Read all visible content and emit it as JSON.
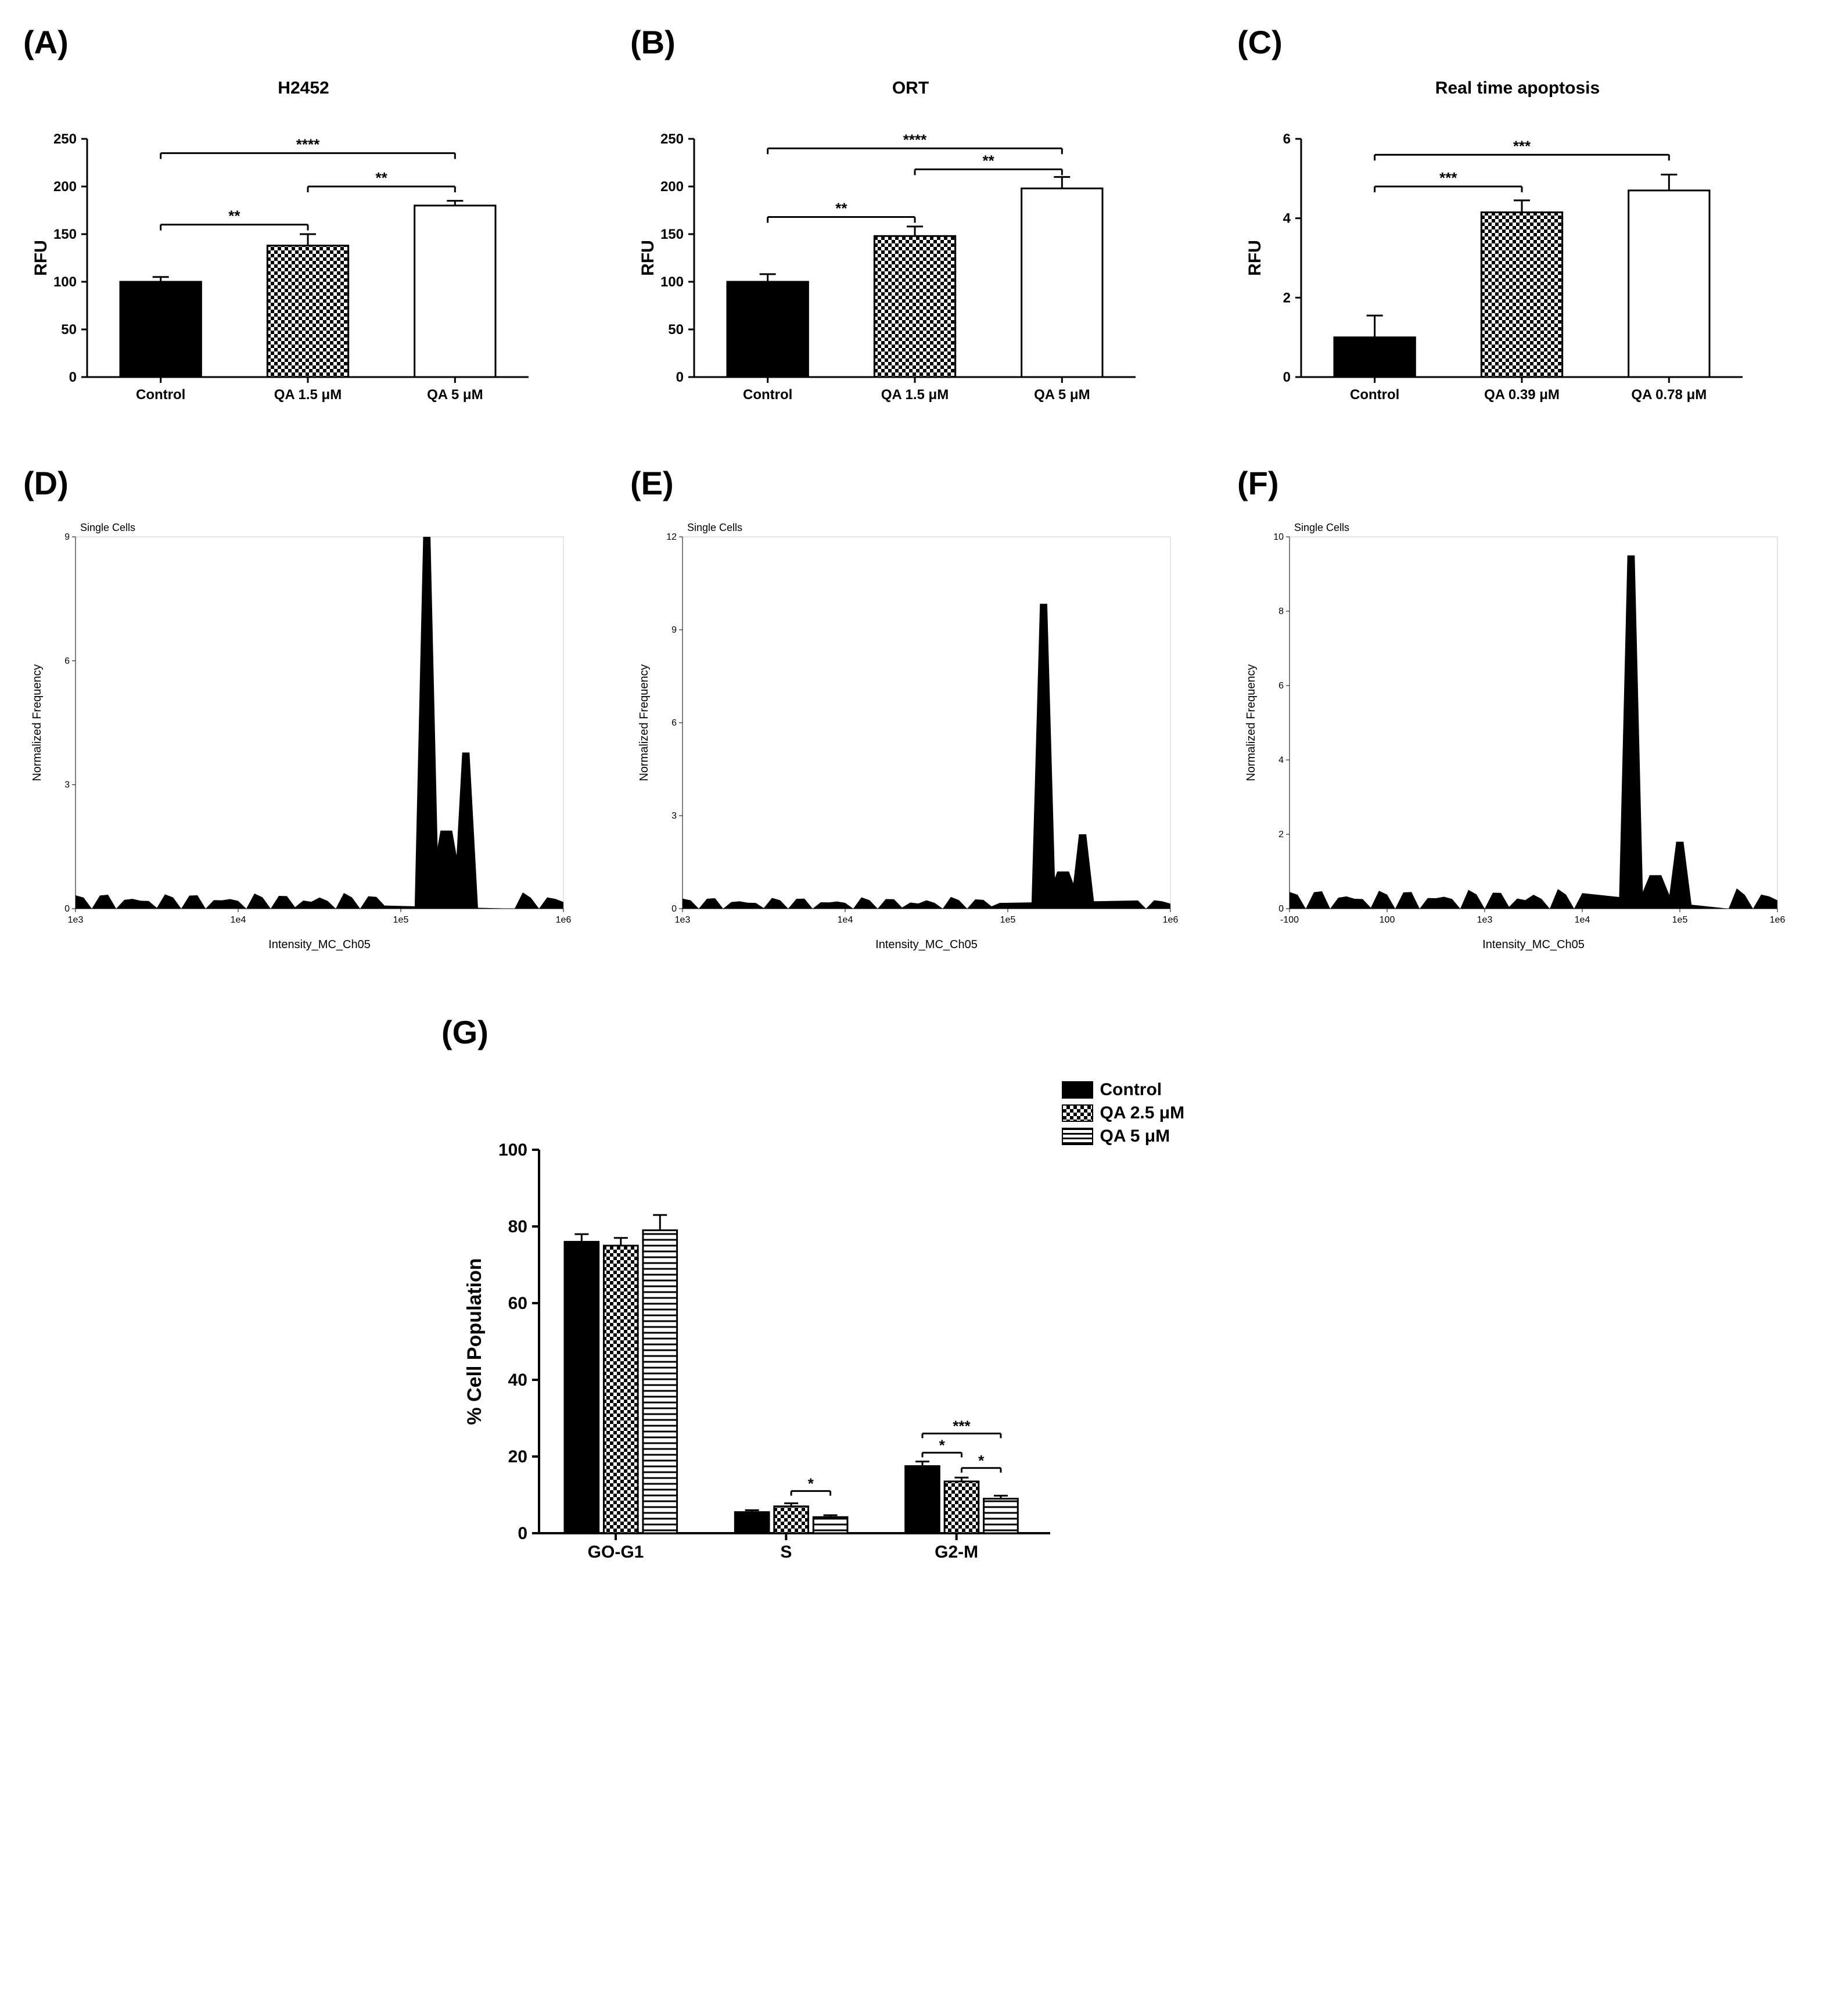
{
  "panelA": {
    "label": "(A)",
    "title": "H2452",
    "ylabel": "RFU",
    "ylim": [
      0,
      250
    ],
    "ytick_step": 50,
    "categories": [
      "Control",
      "QA 1.5 μM",
      "QA 5 μM"
    ],
    "values": [
      100,
      138,
      180
    ],
    "errors": [
      5,
      12,
      5
    ],
    "bar_fills": [
      "solid",
      "checker",
      "white"
    ],
    "sig": [
      {
        "from": 0,
        "to": 1,
        "text": "**",
        "y": 160
      },
      {
        "from": 1,
        "to": 2,
        "text": "**",
        "y": 200
      },
      {
        "from": 0,
        "to": 2,
        "text": "****",
        "y": 235
      }
    ],
    "label_fontsize": 24,
    "tick_fontsize": 22,
    "colors": {
      "stroke": "#000000",
      "bg": "#ffffff"
    }
  },
  "panelB": {
    "label": "(B)",
    "title": "ORT",
    "ylabel": "RFU",
    "ylim": [
      0,
      250
    ],
    "ytick_step": 50,
    "categories": [
      "Control",
      "QA 1.5 μM",
      "QA 5 μM"
    ],
    "values": [
      100,
      148,
      198
    ],
    "errors": [
      8,
      10,
      12
    ],
    "bar_fills": [
      "solid",
      "checker",
      "white"
    ],
    "sig": [
      {
        "from": 0,
        "to": 1,
        "text": "**",
        "y": 168
      },
      {
        "from": 1,
        "to": 2,
        "text": "**",
        "y": 218
      },
      {
        "from": 0,
        "to": 2,
        "text": "****",
        "y": 240
      }
    ]
  },
  "panelC": {
    "label": "(C)",
    "title": "Real time apoptosis",
    "ylabel": "RFU",
    "ylim": [
      0,
      6
    ],
    "ytick_step": 2,
    "categories": [
      "Control",
      "QA 0.39 μM",
      "QA 0.78 μM"
    ],
    "values": [
      1.0,
      4.15,
      4.7
    ],
    "errors": [
      0.55,
      0.3,
      0.4
    ],
    "bar_fills": [
      "solid",
      "checker",
      "white"
    ],
    "sig": [
      {
        "from": 0,
        "to": 1,
        "text": "***",
        "y": 4.8
      },
      {
        "from": 0,
        "to": 2,
        "text": "***",
        "y": 5.6
      }
    ]
  },
  "panelD": {
    "label": "(D)",
    "header": "Single Cells",
    "xlabel": "Intensity_MC_Ch05",
    "ylabel": "Normalized Frequency",
    "xticks": [
      "1e3",
      "1e4",
      "1e5",
      "1e6"
    ],
    "yticks": [
      "0",
      "3",
      "6",
      "9"
    ],
    "peak1_x": 0.72,
    "peak1_h": 1.0,
    "peak2_x": 0.8,
    "peak2_h": 0.42,
    "noise_floor": 0.04
  },
  "panelE": {
    "label": "(E)",
    "header": "Single Cells",
    "xlabel": "Intensity_MC_Ch05",
    "ylabel": "Normalized Frequency",
    "xticks": [
      "1e3",
      "1e4",
      "1e5",
      "1e6"
    ],
    "yticks": [
      "0",
      "3",
      "6",
      "9",
      "12"
    ],
    "peak1_x": 0.74,
    "peak1_h": 0.82,
    "peak2_x": 0.82,
    "peak2_h": 0.2,
    "noise_floor": 0.03
  },
  "panelF": {
    "label": "(F)",
    "header": "Single Cells",
    "xlabel": "Intensity_MC_Ch05",
    "ylabel": "Normalized Frequency",
    "xticks": [
      "-100",
      "100",
      "1e3",
      "1e4",
      "1e5",
      "1e6"
    ],
    "yticks": [
      "0",
      "2",
      "4",
      "6",
      "8",
      "10"
    ],
    "peak1_x": 0.7,
    "peak1_h": 0.95,
    "peak2_x": 0.8,
    "peak2_h": 0.18,
    "noise_floor": 0.05
  },
  "panelG": {
    "label": "(G)",
    "ylabel": "% Cell Population",
    "ylim": [
      0,
      100
    ],
    "ytick_step": 20,
    "groups": [
      "GO-G1",
      "S",
      "G2-M"
    ],
    "series": [
      {
        "name": "Control",
        "fill": "solid",
        "values": [
          76,
          5.5,
          17.5
        ],
        "errors": [
          2,
          0.5,
          1.2
        ]
      },
      {
        "name": "QA 2.5 μM",
        "fill": "checker",
        "values": [
          75,
          7,
          13.5
        ],
        "errors": [
          2,
          0.8,
          1.0
        ]
      },
      {
        "name": "QA 5 μM",
        "fill": "hstripe",
        "values": [
          79,
          4.2,
          9
        ],
        "errors": [
          4,
          0.5,
          0.8
        ]
      }
    ],
    "sig": [
      {
        "group": 1,
        "from": 1,
        "to": 2,
        "text": "*",
        "y": 11
      },
      {
        "group": 2,
        "from": 0,
        "to": 1,
        "text": "*",
        "y": 21
      },
      {
        "group": 2,
        "from": 1,
        "to": 2,
        "text": "*",
        "y": 17
      },
      {
        "group": 2,
        "from": 0,
        "to": 2,
        "text": "***",
        "y": 26
      }
    ]
  },
  "style": {
    "bar_stroke": "#000000",
    "bar_stroke_width": 3,
    "axis_stroke_width": 3,
    "bg": "#ffffff"
  }
}
